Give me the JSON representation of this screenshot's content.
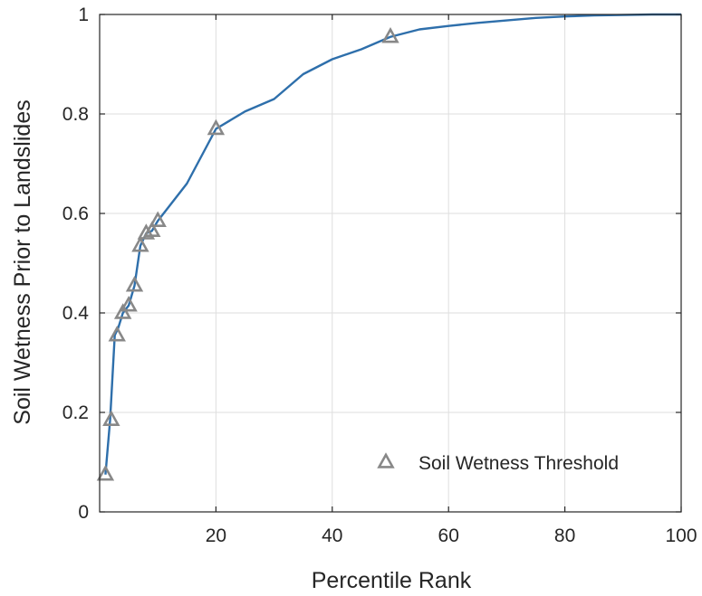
{
  "chart_data": {
    "type": "line",
    "xlabel": "Percentile Rank",
    "ylabel": "Soil Wetness Prior to Landslides",
    "xlim": [
      0,
      100
    ],
    "ylim": [
      0,
      1
    ],
    "xticks": [
      20,
      40,
      60,
      80,
      100
    ],
    "yticks": [
      0,
      0.2,
      0.4,
      0.6,
      0.8,
      1
    ],
    "xtick_labels": [
      "20",
      "40",
      "60",
      "80",
      "100"
    ],
    "ytick_labels": [
      "0",
      "0.2",
      "0.4",
      "0.6",
      "0.8",
      "1"
    ],
    "grid": true,
    "legend": {
      "position": "bottom-right",
      "entries": [
        "Soil Wetness Threshold"
      ]
    },
    "series": [
      {
        "type": "line",
        "color": "#2e6fab",
        "x": [
          1,
          1.8,
          2.6,
          3.2,
          4,
          5,
          6,
          7,
          8,
          9,
          10,
          12,
          15,
          20,
          25,
          30,
          35,
          40,
          45,
          50,
          55,
          60,
          65,
          70,
          75,
          80,
          85,
          90,
          95,
          100
        ],
        "y": [
          0.075,
          0.185,
          0.355,
          0.37,
          0.4,
          0.415,
          0.455,
          0.535,
          0.56,
          0.565,
          0.585,
          0.615,
          0.66,
          0.77,
          0.805,
          0.83,
          0.88,
          0.91,
          0.93,
          0.955,
          0.97,
          0.977,
          0.983,
          0.988,
          0.993,
          0.996,
          0.998,
          0.999,
          1.0,
          1.0
        ]
      },
      {
        "name": "Soil Wetness Threshold",
        "type": "scatter",
        "marker": "triangle",
        "color": "#888888",
        "x": [
          1,
          2,
          3,
          4,
          5,
          6,
          7,
          8,
          9,
          10,
          20,
          50
        ],
        "y": [
          0.075,
          0.185,
          0.355,
          0.4,
          0.415,
          0.455,
          0.535,
          0.56,
          0.565,
          0.585,
          0.77,
          0.955
        ]
      }
    ]
  }
}
